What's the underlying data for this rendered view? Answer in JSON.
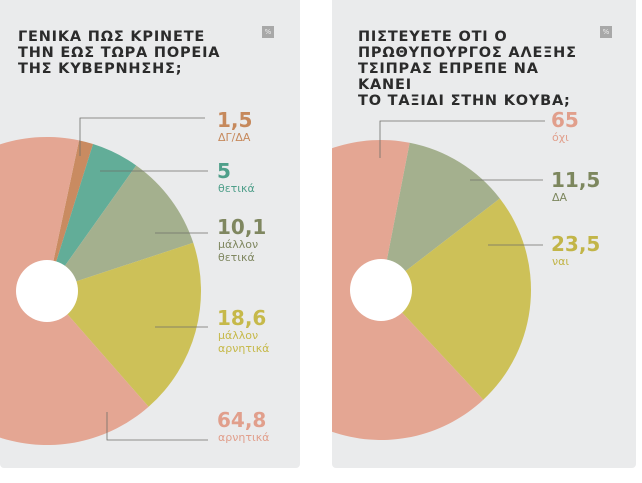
{
  "chart_data": [
    {
      "type": "pie",
      "title_lines": [
        "ΓΕΝΙΚΑ ΠΩΣ ΚΡΙΝΕΤΕ",
        "ΤΗΝ ΕΩΣ ΤΩΡΑ ΠΟΡΕΙΑ",
        "ΤΗΣ ΚΥΒΕΡΝΗΣΗΣ;"
      ],
      "unit_badge": "%",
      "slices": [
        {
          "value": 1.5,
          "value_label": "1,5",
          "label_lines": [
            "ΔΓ/ΔΑ"
          ],
          "color": "#c98b61",
          "text_color": "#c6895c"
        },
        {
          "value": 5,
          "value_label": "5",
          "label_lines": [
            "θετικά"
          ],
          "color": "#62ad98",
          "text_color": "#4f9f8a"
        },
        {
          "value": 10.1,
          "value_label": "10,1",
          "label_lines": [
            "μάλλον",
            "θετικά"
          ],
          "color": "#a4b08e",
          "text_color": "#7f8760"
        },
        {
          "value": 18.6,
          "value_label": "18,6",
          "label_lines": [
            "μάλλον",
            "αρνητικά"
          ],
          "color": "#cdc158",
          "text_color": "#c6b94a"
        },
        {
          "value": 64.8,
          "value_label": "64,8",
          "label_lines": [
            "αρνητικά"
          ],
          "color": "#e4a693",
          "text_color": "#e19f8c"
        }
      ]
    },
    {
      "type": "pie",
      "title_lines": [
        "ΠΙΣΤΕΥΕΤΕ ΟΤΙ Ο",
        "ΠΡΩΘΥΠΟΥΡΓΟΣ ΑΛΕΞΗΣ",
        "ΤΣΙΠΡΑΣ ΕΠΡΕΠΕ ΝΑ ΚΑΝΕΙ",
        "ΤΟ ΤΑΞΙΔΙ ΣΤΗΝ ΚΟΥΒΑ;"
      ],
      "unit_badge": "%",
      "slices": [
        {
          "value": 11.5,
          "value_label": "11,5",
          "label_lines": [
            "ΔΑ"
          ],
          "color": "#a4b08e",
          "text_color": "#7d875e"
        },
        {
          "value": 23.5,
          "value_label": "23,5",
          "label_lines": [
            "ναι"
          ],
          "color": "#cdc158",
          "text_color": "#c2b548"
        },
        {
          "value": 65,
          "value_label": "65",
          "label_lines": [
            "όχι"
          ],
          "color": "#e4a693",
          "text_color": "#e19f8c"
        }
      ]
    }
  ]
}
